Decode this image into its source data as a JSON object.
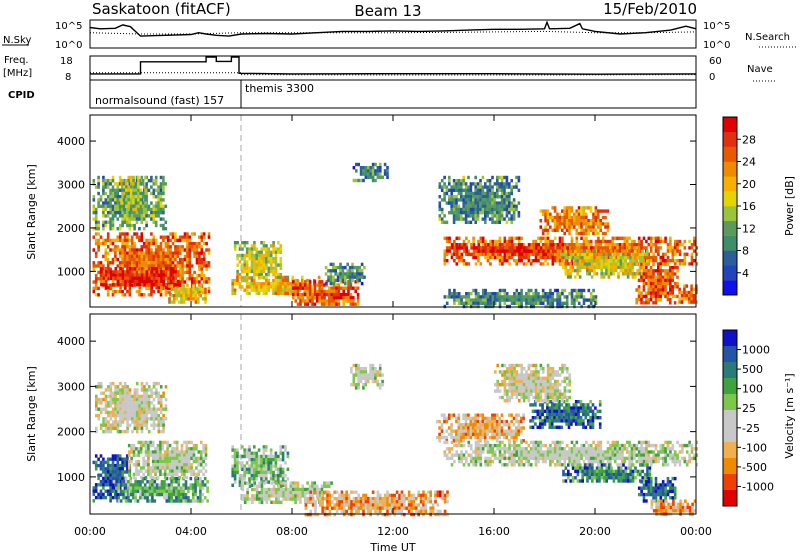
{
  "header": {
    "station": "Saskatoon (fitACF)",
    "beam": "Beam 13",
    "date": "15/Feb/2010"
  },
  "params": {
    "nsky_label": "N.Sky",
    "nsearch_label": "N.Search",
    "nsky_ticks": [
      "10^5",
      "10^0"
    ],
    "nsearch_ticks": [
      "10^5",
      "10^0"
    ],
    "freq_label_1": "Freq.",
    "freq_label_2": "[MHz]",
    "freq_ticks": [
      "18",
      "8"
    ],
    "nave_label": "Nave",
    "nave_ticks": [
      "60",
      "0"
    ],
    "cpid_label": "CPID",
    "cpid_1": "normalsound (fast) 157",
    "cpid_2": "themis 3300",
    "nsky_trace": [
      [
        0,
        0.75
      ],
      [
        0.4,
        0.7
      ],
      [
        1,
        0.72
      ],
      [
        1.3,
        0.85
      ],
      [
        1.6,
        0.78
      ],
      [
        2,
        0.42
      ],
      [
        3,
        0.45
      ],
      [
        4,
        0.48
      ],
      [
        4.3,
        0.55
      ],
      [
        4.6,
        0.5
      ],
      [
        5,
        0.45
      ],
      [
        5.5,
        0.42
      ],
      [
        6,
        0.5
      ],
      [
        7,
        0.52
      ],
      [
        8,
        0.5
      ],
      [
        9,
        0.55
      ],
      [
        10,
        0.6
      ],
      [
        11,
        0.6
      ],
      [
        12,
        0.62
      ],
      [
        13,
        0.6
      ],
      [
        14,
        0.62
      ],
      [
        15,
        0.65
      ],
      [
        16,
        0.68
      ],
      [
        17,
        0.68
      ],
      [
        18,
        0.7
      ],
      [
        18.1,
        0.95
      ],
      [
        18.2,
        0.7
      ],
      [
        19,
        0.72
      ],
      [
        19.4,
        0.9
      ],
      [
        19.5,
        0.7
      ],
      [
        20,
        0.6
      ],
      [
        21,
        0.5
      ],
      [
        22,
        0.55
      ],
      [
        23,
        0.65
      ],
      [
        23.6,
        0.8
      ],
      [
        24,
        0.7
      ]
    ],
    "nsearch_trace": [
      [
        0,
        0.55
      ],
      [
        2,
        0.5
      ],
      [
        4,
        0.5
      ],
      [
        6,
        0.55
      ],
      [
        8,
        0.55
      ],
      [
        10,
        0.55
      ],
      [
        12,
        0.55
      ],
      [
        14,
        0.56
      ],
      [
        16,
        0.58
      ],
      [
        18,
        0.6
      ],
      [
        20,
        0.55
      ],
      [
        22,
        0.55
      ],
      [
        24,
        0.58
      ]
    ],
    "freq_trace": [
      [
        0,
        10.3
      ],
      [
        2,
        10.3
      ],
      [
        2,
        15.8
      ],
      [
        4.6,
        15.8
      ],
      [
        4.6,
        18
      ],
      [
        5,
        18
      ],
      [
        5,
        16
      ],
      [
        5.6,
        16
      ],
      [
        5.6,
        18
      ],
      [
        5.9,
        18
      ],
      [
        5.9,
        10.6
      ],
      [
        8,
        10.3
      ],
      [
        12,
        10.4
      ],
      [
        16,
        10.4
      ],
      [
        20,
        10.2
      ],
      [
        24,
        10.3
      ]
    ],
    "nave_trace": [
      [
        0,
        17
      ],
      [
        6,
        17
      ],
      [
        6,
        12
      ],
      [
        12,
        11
      ],
      [
        18,
        11
      ],
      [
        24,
        12
      ]
    ]
  },
  "color": {
    "power_scale": [
      "#1010ee",
      "#2244bb",
      "#2c5f9a",
      "#3e8e6a",
      "#5a9a5a",
      "#9ac43c",
      "#e6d400",
      "#f5b000",
      "#f08a00",
      "#e85a00",
      "#e03010",
      "#e00000"
    ],
    "velocity_scale": [
      "#e00000",
      "#f04000",
      "#f08a00",
      "#f0b050",
      "#c8c8c8",
      "#c8c8c8",
      "#7cc84a",
      "#3ea23e",
      "#2a7a7a",
      "#2454a8",
      "#1010c8"
    ]
  },
  "chart_data": [
    {
      "type": "heatmap",
      "title": "Power",
      "xlabel": "",
      "ylabel": "Slant Range [km]",
      "xlim": [
        0,
        24
      ],
      "ylim": [
        180,
        4600
      ],
      "x_ticks": [
        "00:00",
        "04:00",
        "08:00",
        "12:00",
        "16:00",
        "20:00",
        "00:00"
      ],
      "y_ticks": [
        "1000",
        "2000",
        "3000",
        "4000"
      ],
      "colorbar_label": "Power [dB]",
      "colorbar_range": [
        0,
        32
      ],
      "colorbar_ticks": [
        "4",
        "8",
        "12",
        "16",
        "20",
        "24",
        "28"
      ],
      "regions": [
        {
          "t0": 0.1,
          "t1": 4.7,
          "r0": 500,
          "r1": 1900,
          "level": 0.78
        },
        {
          "t0": 0.4,
          "t1": 3.5,
          "r0": 650,
          "r1": 1100,
          "level": 0.93
        },
        {
          "t0": 0.1,
          "t1": 3.0,
          "r0": 2000,
          "r1": 3200,
          "level": 0.35
        },
        {
          "t0": 1.2,
          "t1": 2.2,
          "r0": 2400,
          "r1": 3200,
          "level": 0.45
        },
        {
          "t0": 3.0,
          "t1": 4.6,
          "r0": 300,
          "r1": 700,
          "level": 0.6
        },
        {
          "t0": 5.7,
          "t1": 7.6,
          "r0": 850,
          "r1": 1700,
          "level": 0.5
        },
        {
          "t0": 5.6,
          "t1": 9.1,
          "r0": 500,
          "r1": 900,
          "level": 0.62
        },
        {
          "t0": 8.0,
          "t1": 10.6,
          "r0": 250,
          "r1": 800,
          "level": 0.82
        },
        {
          "t0": 9.3,
          "t1": 10.9,
          "r0": 750,
          "r1": 1200,
          "level": 0.3
        },
        {
          "t0": 10.4,
          "t1": 11.8,
          "r0": 3100,
          "r1": 3500,
          "level": 0.3
        },
        {
          "t0": 13.8,
          "t1": 17.0,
          "r0": 2100,
          "r1": 3200,
          "level": 0.3
        },
        {
          "t0": 14.0,
          "t1": 24.0,
          "r0": 1200,
          "r1": 1800,
          "level": 0.78
        },
        {
          "t0": 14.3,
          "t1": 19.0,
          "r0": 1400,
          "r1": 1650,
          "level": 0.9
        },
        {
          "t0": 17.8,
          "t1": 20.5,
          "r0": 1900,
          "r1": 2500,
          "level": 0.72
        },
        {
          "t0": 18.6,
          "t1": 22.1,
          "r0": 900,
          "r1": 1500,
          "level": 0.55
        },
        {
          "t0": 21.6,
          "t1": 23.3,
          "r0": 300,
          "r1": 1200,
          "level": 0.8
        },
        {
          "t0": 14.0,
          "t1": 20.0,
          "r0": 200,
          "r1": 600,
          "level": 0.3
        },
        {
          "t0": 23.3,
          "t1": 24.0,
          "r0": 300,
          "r1": 700,
          "level": 0.75
        }
      ]
    },
    {
      "type": "heatmap",
      "title": "Velocity",
      "xlabel": "Time UT",
      "ylabel": "Slant Range [km]",
      "xlim": [
        0,
        24
      ],
      "ylim": [
        180,
        4600
      ],
      "x_ticks": [
        "00:00",
        "04:00",
        "08:00",
        "12:00",
        "16:00",
        "20:00",
        "00:00"
      ],
      "y_ticks": [
        "1000",
        "2000",
        "3000",
        "4000"
      ],
      "colorbar_label": "Velocity [m s⁻¹]",
      "colorbar_ticks": [
        "1000",
        "500",
        "100",
        "25",
        "-25",
        "-100",
        "-500",
        "-1000"
      ],
      "regions": [
        {
          "t0": 0.1,
          "t1": 1.6,
          "r0": 500,
          "r1": 1500,
          "level": 0.85
        },
        {
          "t0": 0.9,
          "t1": 4.7,
          "r0": 450,
          "r1": 1000,
          "level": 0.66
        },
        {
          "t0": 1.5,
          "t1": 4.6,
          "r0": 1000,
          "r1": 1800,
          "level": 0.5
        },
        {
          "t0": 0.2,
          "t1": 3.0,
          "r0": 2000,
          "r1": 3100,
          "level": 0.45
        },
        {
          "t0": 5.6,
          "t1": 7.8,
          "r0": 800,
          "r1": 1700,
          "level": 0.6
        },
        {
          "t0": 6.0,
          "t1": 9.6,
          "r0": 450,
          "r1": 900,
          "level": 0.5
        },
        {
          "t0": 8.5,
          "t1": 14.2,
          "r0": 200,
          "r1": 700,
          "level": 0.3
        },
        {
          "t0": 13.7,
          "t1": 17.2,
          "r0": 1800,
          "r1": 2400,
          "level": 0.32
        },
        {
          "t0": 14.0,
          "t1": 24.0,
          "r0": 1300,
          "r1": 1800,
          "level": 0.5
        },
        {
          "t0": 17.4,
          "t1": 20.2,
          "r0": 2100,
          "r1": 2700,
          "level": 0.82
        },
        {
          "t0": 18.7,
          "t1": 22.2,
          "r0": 900,
          "r1": 1300,
          "level": 0.74
        },
        {
          "t0": 21.7,
          "t1": 23.2,
          "r0": 500,
          "r1": 1000,
          "level": 0.82
        },
        {
          "t0": 22.2,
          "t1": 24.0,
          "r0": 200,
          "r1": 500,
          "level": 0.3
        },
        {
          "t0": 16.0,
          "t1": 19.0,
          "r0": 2700,
          "r1": 3500,
          "level": 0.45
        },
        {
          "t0": 10.3,
          "t1": 11.6,
          "r0": 3000,
          "r1": 3500,
          "level": 0.5
        }
      ]
    }
  ]
}
